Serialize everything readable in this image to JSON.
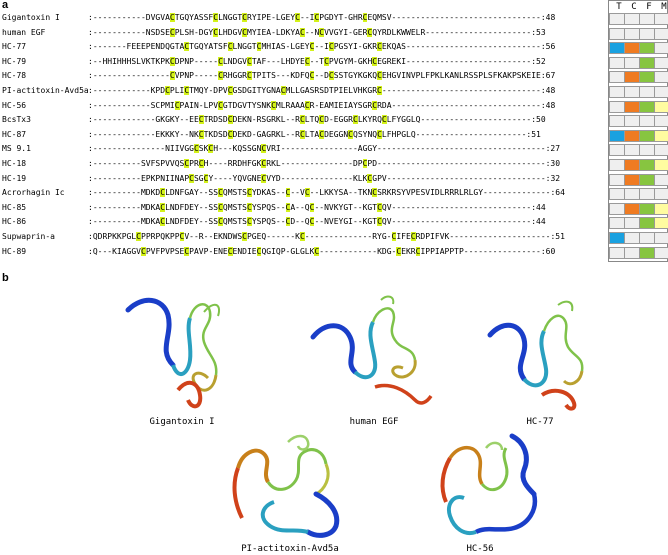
{
  "panels": {
    "a": "a",
    "b": "b"
  },
  "grid_headers": [
    "T",
    "C",
    "F",
    "M"
  ],
  "colors": {
    "cysteine": "#d4f21a",
    "cell_blank": "#efefef",
    "blue": "#1aa1e0",
    "orange": "#ef7b22",
    "green": "#87c540",
    "yellow": "#fffca0"
  },
  "alignment": [
    {
      "name": "Gigantoxin I",
      "seq": ":-----------DVGVA[C]TGQYASSF[C]LNGGT[C]RYIPE-LGEY[C]--I[C]PGDYT-GHR[C]EQMSV-------------------------------:48",
      "cells": [
        "",
        "",
        "",
        ""
      ]
    },
    {
      "name": "human EGF",
      "seq": ":-----------NSDSE[C]PLSH-DGY[C]LHDGV[C]MYIEA-LDKYA[C]--N[C]VVGYI-GER[C]QYRDLKWWELR----------------------:53",
      "cells": [
        "",
        "",
        "",
        ""
      ]
    },
    {
      "name": "HC-77",
      "seq": ":-------FEEEPENDQGTA[C]TGQYATSF[C]LNGGT[C]MHIAS-LGEY[C]--I[C]PGSYI-GKR[C]EKQAS----------------------------:56",
      "cells": [
        "blue",
        "orange",
        "green",
        ""
      ]
    },
    {
      "name": "HC-79",
      "seq": ":--HHIHHHSLVKTKPK[C]DPNP-----[C]LNDGV[C]TAF---LHDYE[C]--T[C]PVGYM-GKH[C]EGREKI--------------------------:52",
      "cells": [
        "",
        "",
        "green",
        ""
      ]
    },
    {
      "name": "HC-78",
      "seq": ":----------------[C]VPNP-----[C]RHGGR[C]TPITS---KDFQ[C]--D[C]SSTGYKGKQ[C]EHGVINVPLFPKLKANLRSSPLSFKAKPSKEIE:67",
      "cells": [
        "",
        "orange",
        "green",
        ""
      ]
    },
    {
      "name": "PI-actitoxin-Avd5a",
      "seq": ":------------KPD[C]PLI[C]TMQY-DPV[C]GSDGITYGNA[C]MLLGASRSDTPIELVHKGR[C]---------------------------------:48",
      "cells": [
        "",
        "",
        "",
        ""
      ]
    },
    {
      "name": "HC-56",
      "seq": ":------------SCPMI[C]PAIN-LPV[C]GTDGVTYSNK[C]MLRAAA[C]R-EAMIEIAYSGR[C]RDA-------------------------------:48",
      "cells": [
        "",
        "orange",
        "green",
        "yellow"
      ]
    },
    {
      "name": "BcsTx3",
      "seq": ":-------------GKGKY--EE[C]TRDSD[C]DEKN-RSGRKL--R[C]LTQ[C]D-EGGR[C]LKYRQ[C]LFYGGLQ-----------------------:50",
      "cells": [
        "",
        "",
        "",
        ""
      ]
    },
    {
      "name": "HC-87",
      "seq": ":-------------EKKKY--NK[C]TKDSD[C]DEKD-GAGRKL--R[C]LTA[C]DEGGN[C]QSYNQ[C]LFHPGLQ-----------------------:51",
      "cells": [
        "blue",
        "orange",
        "green",
        "yellow"
      ]
    },
    {
      "name": "MS 9.1",
      "seq": ":---------------NIIVGG[C]SK[C]H---KQSSGN[C]VRI----------------AGGY-----------------------------------:27",
      "cells": [
        "",
        "",
        "",
        ""
      ]
    },
    {
      "name": "HC-18",
      "seq": ":----------SVFSPVVQS[C]PR[C]H----RRDHFGK[C]RKL---------------DP[C]PD-----------------------------------:30",
      "cells": [
        "",
        "orange",
        "green",
        "yellow"
      ]
    },
    {
      "name": "HC-19",
      "seq": ":----------EPKPNIINAP[C]SG[C]Y----YQVGNE[C]VYD---------------KLK[C]GPV---------------------------------:32",
      "cells": [
        "",
        "orange",
        "green",
        ""
      ]
    },
    {
      "name": "Acrorhagin Ic",
      "seq": ":----------MDKD[C]LDNFGAY--SS[C]QMSTS[C]YDKAS--[C]--V[C]--LKKYSA--TKN[C]SRKRSYVPESVIDLRRRLRLGY--------------:64",
      "cells": [
        "",
        "",
        "",
        ""
      ]
    },
    {
      "name": "HC-85",
      "seq": ":----------MDKA[C]LNDFDEY--SS[C]QMSTS[C]YSPQS--[C]A--Q[C]--NVKYGT--KGT[C]QV-----------------------------:44",
      "cells": [
        "",
        "orange",
        "green",
        "yellow"
      ]
    },
    {
      "name": "HC-86",
      "seq": ":----------MDKA[C]LNDFDEY--SS[C]QMSTS[C]YSPQS--[C]D--Q[C]--NVEYGI--KGT[C]QV-----------------------------:44",
      "cells": [
        "",
        "",
        "green",
        "yellow"
      ]
    },
    {
      "name": "Supwaprin-a",
      "seq": ":QDRPKKPGL[C]PPRPQKPP[C]V--R--EKNDWS[C]PGEQ------K[C]--------------RYG-[C]IFE[C]RDPIFVK---------------------:51",
      "cells": [
        "blue",
        "",
        "",
        ""
      ]
    },
    {
      "name": "HC-89",
      "seq": ":Q---KIAGGV[C]PVFPVPSE[C]PAVP-ENE[C]ENDIE[C]QGIQP-GLGLK[C]------------KDG-[C]EKR[C]IPPIAPPTP----------------:60",
      "cells": [
        "",
        "",
        "green",
        ""
      ]
    }
  ],
  "structures": [
    {
      "label": "Gigantoxin I"
    },
    {
      "label": "human EGF"
    },
    {
      "label": "HC-77"
    },
    {
      "label": "PI-actitoxin-Avd5a"
    },
    {
      "label": "HC-56"
    }
  ]
}
